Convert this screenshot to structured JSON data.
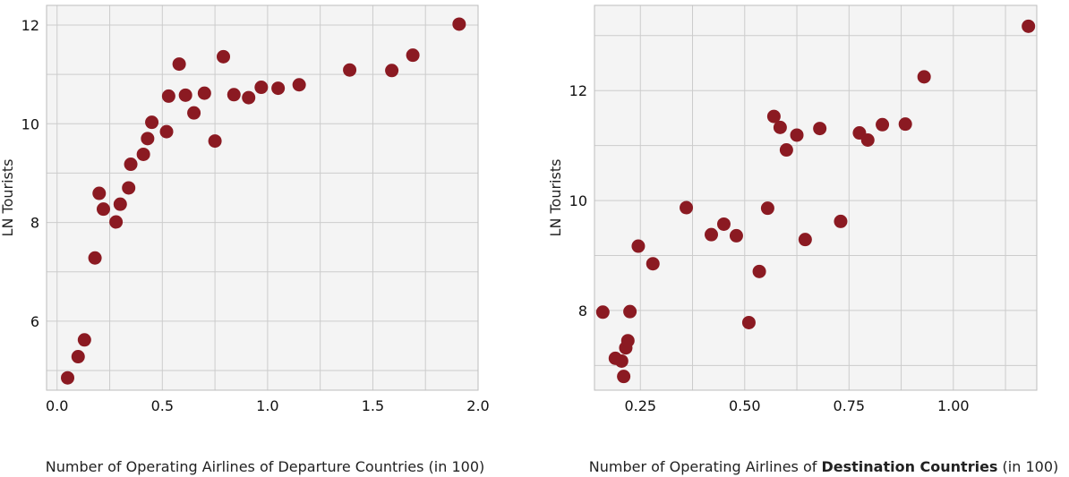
{
  "colors": {
    "point": "#8B1A22",
    "panel": "#f4f4f4",
    "grid": "#cccccc",
    "frame": "#bdbdbd"
  },
  "chart_data": [
    {
      "type": "scatter",
      "xlabel": "Number of Operating Airlines of Departure Countries (in 100)",
      "ylabel": "LN Tourists",
      "xlim": [
        -0.05,
        2.0
      ],
      "ylim": [
        4.6,
        12.4
      ],
      "xticks": [
        0.0,
        0.5,
        1.0,
        1.5,
        2.0
      ],
      "xtick_labels": [
        "0.0",
        "0.5",
        "1.0",
        "1.5",
        "2.0"
      ],
      "yticks": [
        6,
        8,
        10,
        12
      ],
      "ytick_labels": [
        "6",
        "8",
        "10",
        "12"
      ],
      "points": [
        [
          0.05,
          4.85
        ],
        [
          0.1,
          5.28
        ],
        [
          0.13,
          5.62
        ],
        [
          0.18,
          7.28
        ],
        [
          0.2,
          8.59
        ],
        [
          0.22,
          8.27
        ],
        [
          0.28,
          8.01
        ],
        [
          0.3,
          8.37
        ],
        [
          0.34,
          8.7
        ],
        [
          0.35,
          9.18
        ],
        [
          0.41,
          9.38
        ],
        [
          0.43,
          9.7
        ],
        [
          0.45,
          10.03
        ],
        [
          0.52,
          9.84
        ],
        [
          0.53,
          10.56
        ],
        [
          0.58,
          11.21
        ],
        [
          0.61,
          10.58
        ],
        [
          0.65,
          10.22
        ],
        [
          0.7,
          10.62
        ],
        [
          0.75,
          9.65
        ],
        [
          0.79,
          11.36
        ],
        [
          0.84,
          10.59
        ],
        [
          0.91,
          10.53
        ],
        [
          0.97,
          10.74
        ],
        [
          1.05,
          10.72
        ],
        [
          1.15,
          10.79
        ],
        [
          1.39,
          11.09
        ],
        [
          1.59,
          11.08
        ],
        [
          1.69,
          11.39
        ],
        [
          1.91,
          12.02
        ]
      ]
    },
    {
      "type": "scatter",
      "xlabel_regular_1": "Number of Operating Airlines of ",
      "xlabel_bold": "Destination Countries",
      "xlabel_regular_2": " (in 100)",
      "ylabel": "LN Tourists",
      "xlim": [
        0.14,
        1.2
      ],
      "ylim": [
        6.55,
        13.55
      ],
      "xticks": [
        0.25,
        0.5,
        0.75,
        1.0
      ],
      "xtick_labels": [
        "0.25",
        "0.50",
        "0.75",
        "1.00"
      ],
      "yticks": [
        8,
        10,
        12
      ],
      "ytick_labels": [
        "8",
        "10",
        "12"
      ],
      "points": [
        [
          0.16,
          7.97
        ],
        [
          0.19,
          7.13
        ],
        [
          0.205,
          7.08
        ],
        [
          0.21,
          6.8
        ],
        [
          0.215,
          7.32
        ],
        [
          0.22,
          7.45
        ],
        [
          0.225,
          7.98
        ],
        [
          0.245,
          9.17
        ],
        [
          0.28,
          8.85
        ],
        [
          0.36,
          9.87
        ],
        [
          0.42,
          9.38
        ],
        [
          0.45,
          9.57
        ],
        [
          0.48,
          9.36
        ],
        [
          0.51,
          7.78
        ],
        [
          0.535,
          8.71
        ],
        [
          0.555,
          9.86
        ],
        [
          0.57,
          11.53
        ],
        [
          0.585,
          11.33
        ],
        [
          0.6,
          10.92
        ],
        [
          0.625,
          11.19
        ],
        [
          0.645,
          9.29
        ],
        [
          0.68,
          11.31
        ],
        [
          0.73,
          9.62
        ],
        [
          0.775,
          11.23
        ],
        [
          0.795,
          11.1
        ],
        [
          0.83,
          11.38
        ],
        [
          0.885,
          11.39
        ],
        [
          0.93,
          12.25
        ],
        [
          1.18,
          13.17
        ]
      ]
    }
  ]
}
